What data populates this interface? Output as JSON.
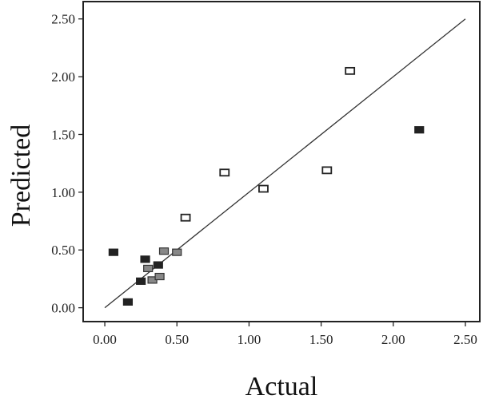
{
  "chart_data": {
    "type": "scatter",
    "title": "",
    "xlabel": "Actual",
    "ylabel": "Predicted",
    "xlim": [
      -0.15,
      2.6
    ],
    "ylim": [
      -0.12,
      2.65
    ],
    "xticks": [
      0.0,
      0.5,
      1.0,
      1.5,
      2.0,
      2.5
    ],
    "xtick_labels": [
      "0.00",
      "0.50",
      "1.00",
      "1.50",
      "2.00",
      "2.50"
    ],
    "yticks": [
      0.0,
      0.5,
      1.0,
      1.5,
      2.0,
      2.5
    ],
    "ytick_labels": [
      "0.00",
      "0.50",
      "1.00",
      "1.50",
      "2.00",
      "2.50"
    ],
    "grid": false,
    "reference_line": {
      "x": [
        0,
        2.5
      ],
      "y": [
        0,
        2.5
      ]
    },
    "series": [
      {
        "marker": "filled-square",
        "color": "#222222",
        "points": [
          {
            "x": 0.06,
            "y": 0.48
          },
          {
            "x": 0.16,
            "y": 0.05
          },
          {
            "x": 0.25,
            "y": 0.23
          },
          {
            "x": 0.28,
            "y": 0.42
          },
          {
            "x": 0.37,
            "y": 0.37
          },
          {
            "x": 2.18,
            "y": 1.54
          }
        ]
      },
      {
        "marker": "grey-square",
        "color": "#888888",
        "points": [
          {
            "x": 0.3,
            "y": 0.34
          },
          {
            "x": 0.33,
            "y": 0.24
          },
          {
            "x": 0.38,
            "y": 0.27
          },
          {
            "x": 0.41,
            "y": 0.49
          },
          {
            "x": 0.5,
            "y": 0.48
          }
        ]
      },
      {
        "marker": "open-square",
        "color": "#ffffff",
        "points": [
          {
            "x": 0.56,
            "y": 0.78
          },
          {
            "x": 0.83,
            "y": 1.17
          },
          {
            "x": 1.1,
            "y": 1.03
          },
          {
            "x": 1.54,
            "y": 1.19
          },
          {
            "x": 1.7,
            "y": 2.05
          }
        ]
      }
    ]
  }
}
